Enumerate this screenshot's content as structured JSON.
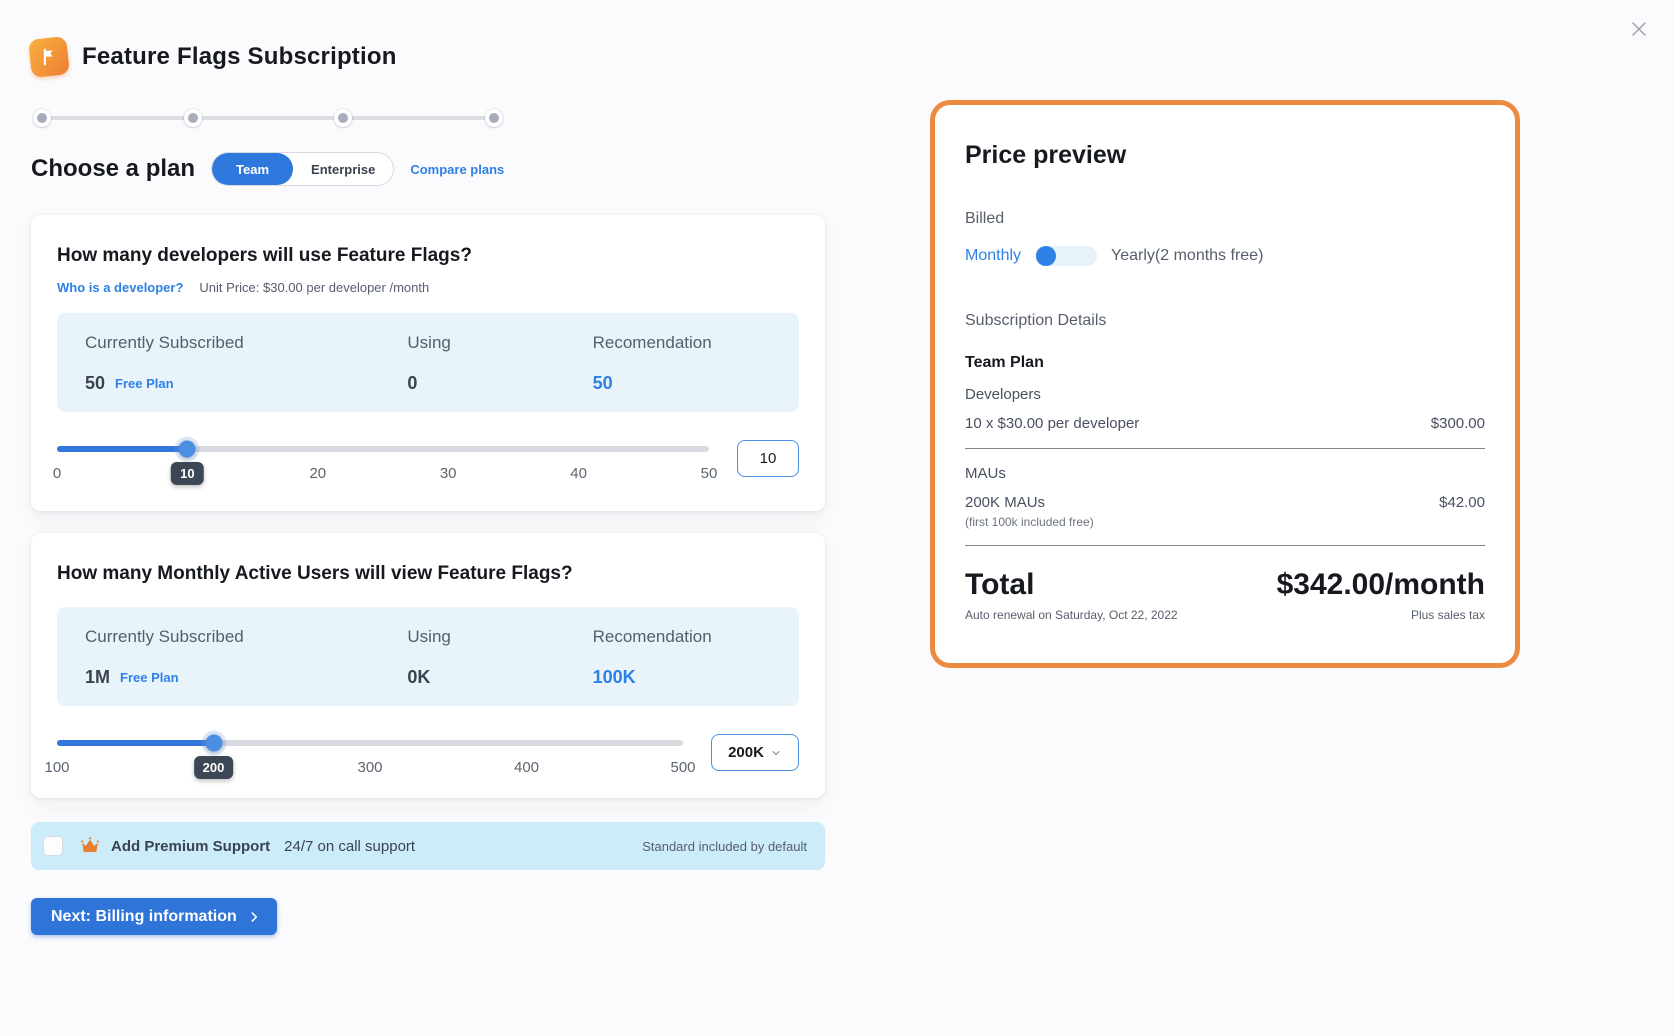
{
  "header": {
    "title": "Feature Flags Subscription"
  },
  "plan": {
    "heading": "Choose a plan",
    "team_label": "Team",
    "enterprise_label": "Enterprise",
    "compare_link": "Compare plans"
  },
  "developers_card": {
    "title": "How many developers will use Feature Flags?",
    "who_link": "Who is a developer?",
    "unit_price": "Unit Price: $30.00 per developer /month",
    "stats": {
      "headers": [
        "Currently Subscribed",
        "Using",
        "Recomendation"
      ],
      "currently_subscribed": "50",
      "plan_badge": "Free Plan",
      "using": "0",
      "recommendation": "50"
    },
    "slider": {
      "min": 0,
      "max": 50,
      "value": 10,
      "percent": 20,
      "badge": "10",
      "tick_labels": [
        "0",
        "20",
        "30",
        "40",
        "50"
      ],
      "tick_positions": [
        0,
        40,
        60,
        80,
        100
      ]
    },
    "input_value": "10"
  },
  "maus_card": {
    "title": "How many Monthly Active Users will view Feature Flags?",
    "stats": {
      "headers": [
        "Currently Subscribed",
        "Using",
        "Recomendation"
      ],
      "currently_subscribed": "1M",
      "plan_badge": "Free Plan",
      "using": "0K",
      "recommendation": "100K"
    },
    "slider": {
      "min": 100,
      "max": 500,
      "value": 200,
      "percent": 25,
      "badge": "200",
      "tick_labels": [
        "100",
        "300",
        "400",
        "500"
      ],
      "tick_positions": [
        0,
        50,
        75,
        100
      ]
    },
    "select_value": "200K"
  },
  "premium": {
    "label": "Add Premium Support",
    "sub_label": "24/7 on call support",
    "right_note": "Standard included by default"
  },
  "next_button": {
    "label": "Next: Billing information"
  },
  "price_preview": {
    "title": "Price preview",
    "billed_label": "Billed",
    "monthly_label": "Monthly",
    "yearly_label": "Yearly(2 months free)",
    "subscription_details": "Subscription Details",
    "plan_name": "Team Plan",
    "developers_label": "Developers",
    "developers_line": "10 x $30.00 per developer",
    "developers_price": "$300.00",
    "maus_label": "MAUs",
    "maus_line": "200K MAUs",
    "maus_note": "(first 100k included free)",
    "maus_price": "$42.00",
    "total_label": "Total",
    "total_value": "$342.00/month",
    "renewal_note": "Auto renewal on Saturday, Oct 22, 2022",
    "tax_note": "Plus sales tax"
  },
  "colors": {
    "accent_blue": "#2f80e4",
    "button_blue": "#2e74d9",
    "panel_border_orange": "#ec8b3f",
    "crown_orange": "#e87f2e",
    "stats_bg": "#e8f4f9",
    "premium_bg": "#cdecf9",
    "badge_dark": "#3d4654"
  }
}
